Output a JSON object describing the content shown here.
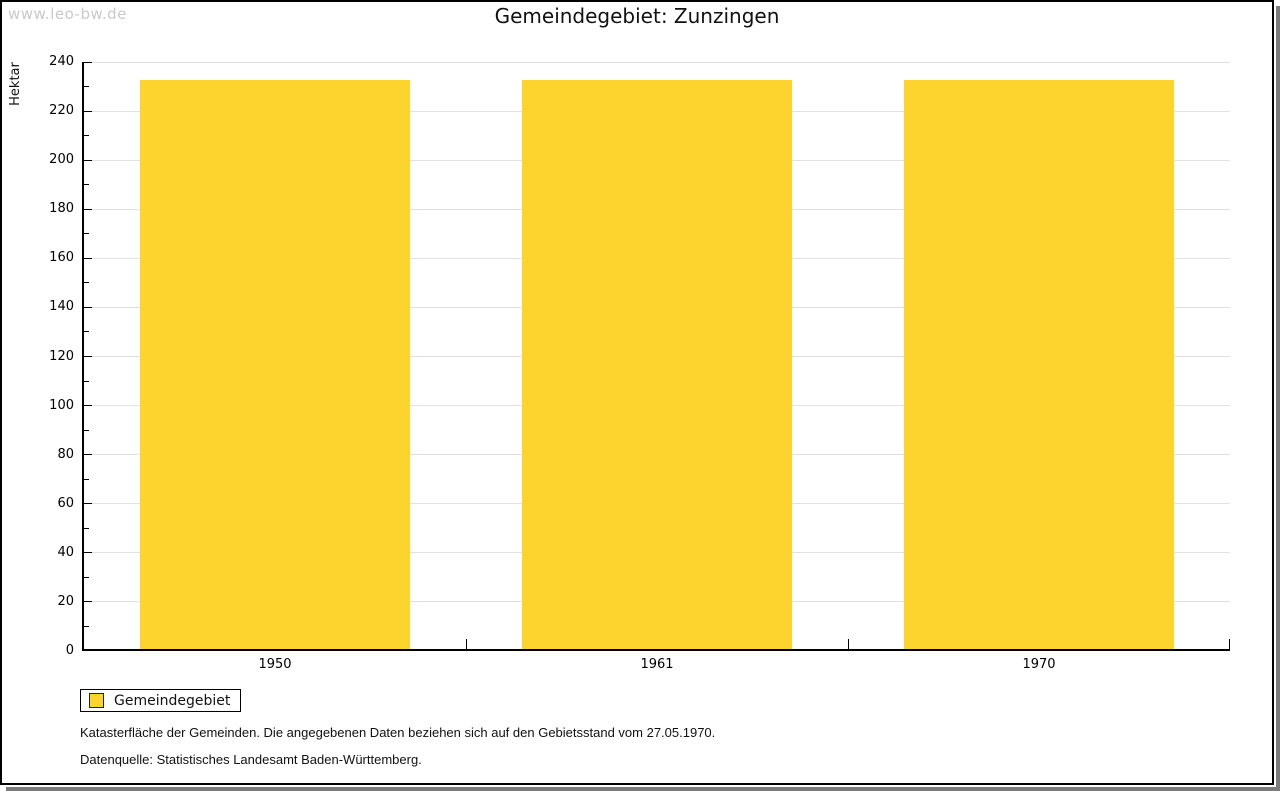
{
  "window": {
    "watermark": "www.leo-bw.de"
  },
  "chart_data": {
    "type": "bar",
    "title": "Gemeindegebiet: Zunzingen",
    "ylabel": "Hektar",
    "xlabel": "",
    "categories": [
      "1950",
      "1961",
      "1970"
    ],
    "series": [
      {
        "name": "Gemeindegebiet",
        "values": [
          232,
          232,
          232
        ]
      }
    ],
    "ylim": [
      0,
      240
    ],
    "ytick_step": 20,
    "yminor_step": 10,
    "grid": true,
    "legend_position": "bottom-left",
    "bar_color": "#FCD42D"
  },
  "legend": {
    "items": [
      {
        "label": "Gemeindegebiet",
        "color": "#FCD42D"
      }
    ]
  },
  "notes": {
    "line1": "Katasterfläche der Gemeinden. Die angegebenen Daten beziehen sich auf den Gebietsstand vom 27.05.1970.",
    "line2": "Datenquelle: Statistisches Landesamt Baden-Württemberg."
  },
  "colors": {
    "bar": "#FCD42D",
    "grid": "#E1E1E1",
    "axis": "#000000",
    "watermark": "#C9C9C9",
    "shadow": "#7B7B7B"
  }
}
